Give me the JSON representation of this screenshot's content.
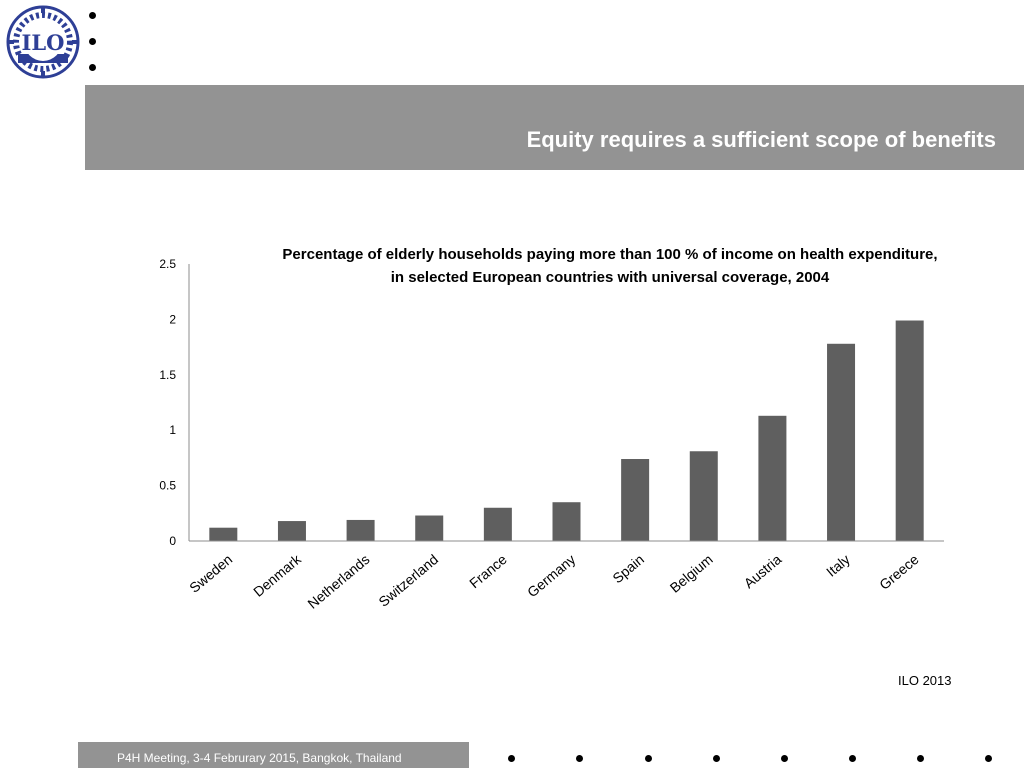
{
  "logo": {
    "text": "ILO"
  },
  "header": {
    "title": "Equity requires a sufficient scope of benefits"
  },
  "chart_data": {
    "type": "bar",
    "title_lines": [
      "Percentage of elderly households paying more than 100 % of income on health expenditure,",
      "in selected European countries with universal coverage, 2004"
    ],
    "categories": [
      "Sweden",
      "Denmark",
      "Netherlands",
      "Switzerland",
      "France",
      "Germany",
      "Spain",
      "Belgium",
      "Austria",
      "Italy",
      "Greece"
    ],
    "values": [
      0.12,
      0.18,
      0.19,
      0.23,
      0.3,
      0.35,
      0.74,
      0.81,
      1.13,
      1.78,
      1.99
    ],
    "ylim": [
      0,
      2.5
    ],
    "yticks": [
      "0",
      "0.5",
      "1",
      "1.5",
      "2",
      "2.5"
    ],
    "xlabel": "",
    "ylabel": "",
    "bar_color": "#5f5f5f",
    "grid": false
  },
  "source": "ILO 2013",
  "footer": {
    "text": "P4H Meeting, 3-4 Februrary 2015, Bangkok, Thailand"
  },
  "colors": {
    "band": "#939393",
    "logo_blue": "#2e3f96"
  }
}
